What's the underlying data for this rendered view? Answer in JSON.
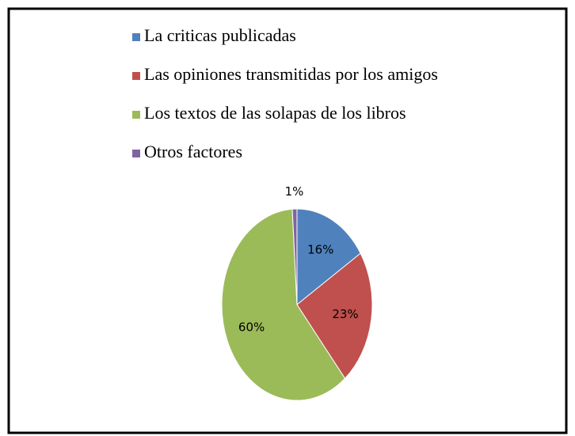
{
  "chart_data": {
    "type": "pie",
    "categories": [
      "La criticas publicadas",
      "Las opiniones transmitidas por los amigos",
      "Los textos de las solapas de los libros",
      "Otros factores"
    ],
    "values": [
      16,
      23,
      60,
      1
    ],
    "value_labels": [
      "16%",
      "23%",
      "60%",
      "1%"
    ],
    "colors": [
      "#4f81bd",
      "#c0504d",
      "#9bbb59",
      "#8064a2"
    ],
    "legend": "top"
  }
}
